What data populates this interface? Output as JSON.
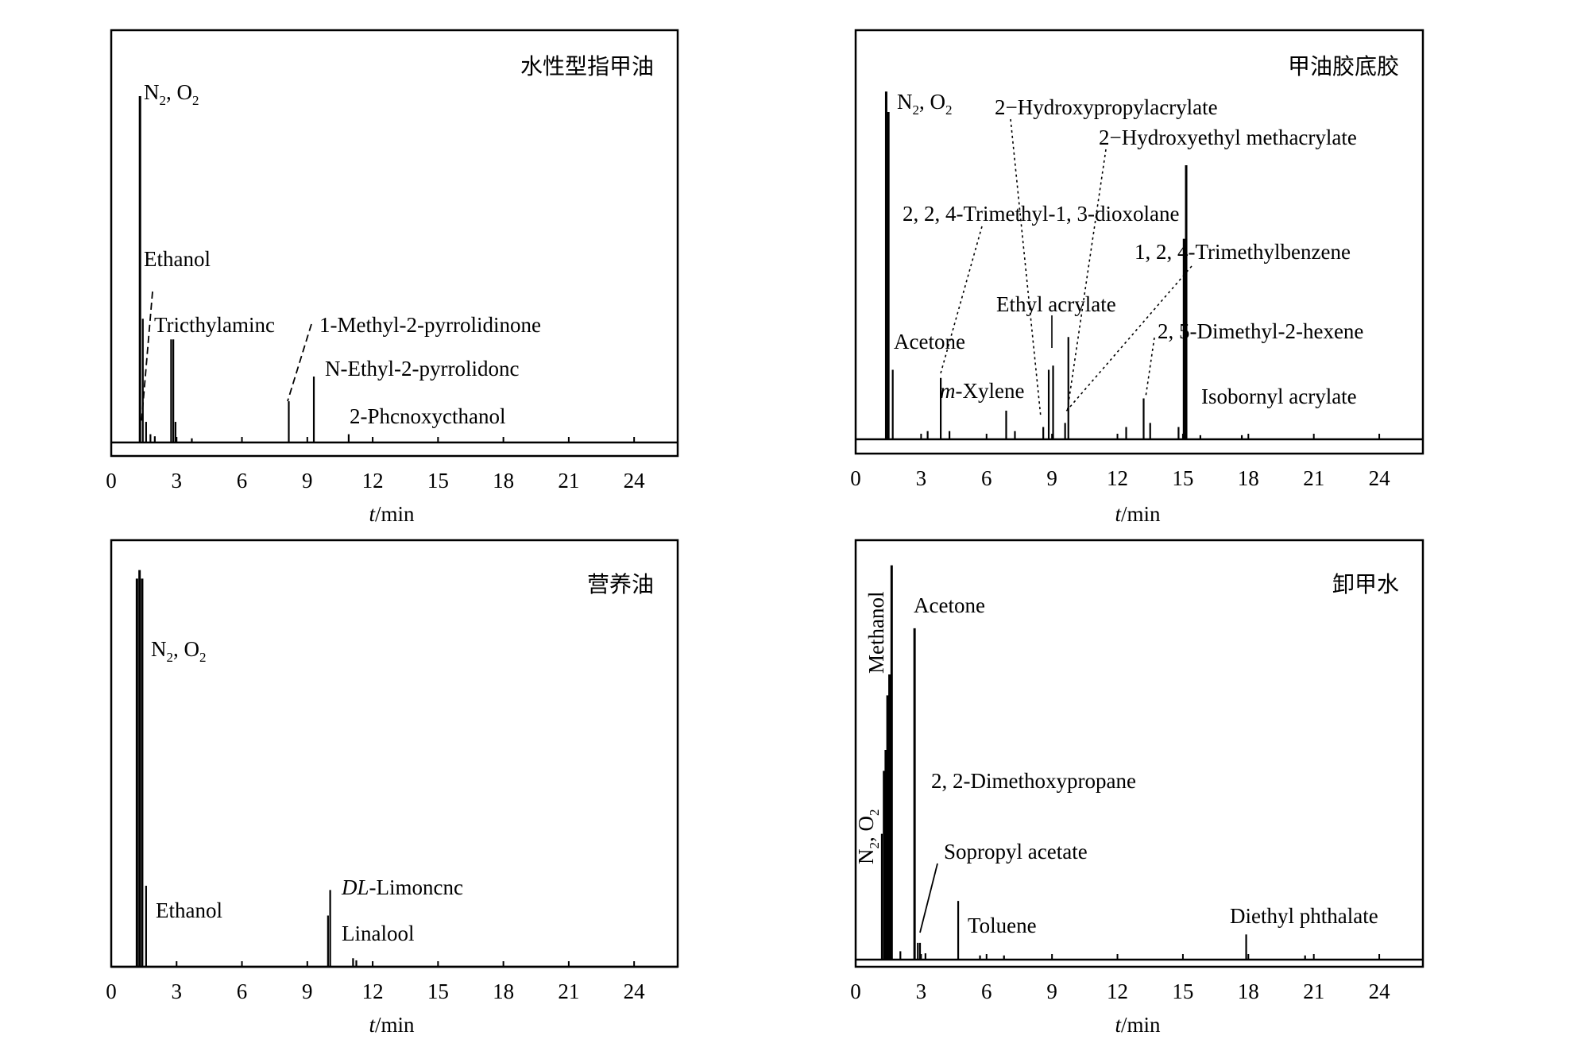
{
  "chart_data": [
    {
      "type": "line",
      "title": "水性型指甲油",
      "xlabel_italic": "t",
      "xlabel_rest": "/min",
      "xlim": [
        0,
        26
      ],
      "xticks": [
        "0",
        "3",
        "6",
        "9",
        "12",
        "15",
        "18",
        "21",
        "24"
      ],
      "peaks": [
        {
          "x": 1.32,
          "h": 0.84
        },
        {
          "x": 1.45,
          "h": 0.3
        },
        {
          "x": 1.6,
          "h": 0.05
        },
        {
          "x": 1.8,
          "h": 0.02
        },
        {
          "x": 2.0,
          "h": 0.015
        },
        {
          "x": 2.75,
          "h": 0.25
        },
        {
          "x": 2.85,
          "h": 0.25
        },
        {
          "x": 2.95,
          "h": 0.05
        },
        {
          "x": 3.7,
          "h": 0.01
        },
        {
          "x": 8.15,
          "h": 0.1
        },
        {
          "x": 9.3,
          "h": 0.16
        },
        {
          "x": 10.9,
          "h": 0.02
        }
      ],
      "labels": [
        {
          "text": "N",
          "sub": "2",
          "text2": ", O",
          "sub2": "2"
        },
        {
          "text": "Ethanol"
        },
        {
          "text": "Tricthylaminc"
        },
        {
          "text": "1-Methyl-2-pyrrolidinone"
        },
        {
          "text": "N-Ethyl-2-pyrrolidonc"
        },
        {
          "text": "2-Phcnoxycthanol"
        }
      ]
    },
    {
      "type": "line",
      "title": "甲油胶底胶",
      "xlabel_italic": "t",
      "xlabel_rest": "/min",
      "xlim": [
        0,
        26
      ],
      "xticks": [
        "0",
        "3",
        "6",
        "9",
        "12",
        "15",
        "18",
        "21",
        "24"
      ],
      "peaks": [
        {
          "x": 1.4,
          "h": 0.85
        },
        {
          "x": 1.5,
          "h": 0.8
        },
        {
          "x": 1.7,
          "h": 0.17
        },
        {
          "x": 3.3,
          "h": 0.02
        },
        {
          "x": 3.9,
          "h": 0.15
        },
        {
          "x": 4.3,
          "h": 0.02
        },
        {
          "x": 6.9,
          "h": 0.07
        },
        {
          "x": 7.3,
          "h": 0.02
        },
        {
          "x": 8.6,
          "h": 0.03
        },
        {
          "x": 8.85,
          "h": 0.17
        },
        {
          "x": 9.05,
          "h": 0.18
        },
        {
          "x": 9.6,
          "h": 0.04
        },
        {
          "x": 9.75,
          "h": 0.25
        },
        {
          "x": 12.4,
          "h": 0.03
        },
        {
          "x": 13.2,
          "h": 0.1
        },
        {
          "x": 13.5,
          "h": 0.04
        },
        {
          "x": 14.8,
          "h": 0.03
        },
        {
          "x": 15.05,
          "h": 0.49
        },
        {
          "x": 15.15,
          "h": 0.67
        },
        {
          "x": 15.8,
          "h": 0.01
        },
        {
          "x": 17.7,
          "h": 0.01
        }
      ],
      "labels": [
        {
          "text": "N",
          "sub": "2",
          "text2": ", O",
          "sub2": "2"
        },
        {
          "text": "2−Hydroxypropylacrylate"
        },
        {
          "text": "2−Hydroxyethyl methacrylate"
        },
        {
          "text": "2, 2, 4-Trimethyl-1, 3-dioxolane"
        },
        {
          "text": "1, 2, 4-Trimethylbenzene"
        },
        {
          "text": "Ethyl acrylate"
        },
        {
          "text": "Acetone"
        },
        {
          "text": "2, 5-Dimethyl-2-hexene"
        },
        {
          "text": "m",
          "text2": "-Xylene"
        },
        {
          "text": "Isobornyl acrylate"
        }
      ]
    },
    {
      "type": "line",
      "title": "营养油",
      "xlabel_italic": "t",
      "xlabel_rest": "/min",
      "xlim": [
        0,
        26
      ],
      "xticks": [
        "0",
        "3",
        "6",
        "9",
        "12",
        "15",
        "18",
        "21",
        "24"
      ],
      "peaks": [
        {
          "x": 1.18,
          "h": 0.91
        },
        {
          "x": 1.3,
          "h": 0.93
        },
        {
          "x": 1.42,
          "h": 0.91
        },
        {
          "x": 1.6,
          "h": 0.19
        },
        {
          "x": 9.95,
          "h": 0.12
        },
        {
          "x": 10.05,
          "h": 0.18
        },
        {
          "x": 11.1,
          "h": 0.02
        },
        {
          "x": 11.25,
          "h": 0.015
        }
      ],
      "labels": [
        {
          "text": "N",
          "sub": "2",
          "text2": ", O",
          "sub2": "2"
        },
        {
          "text": "Ethanol"
        },
        {
          "text": "DL",
          "text2": "-Limoncnc"
        },
        {
          "text": "Linalool"
        }
      ]
    },
    {
      "type": "line",
      "title": "卸甲水",
      "xlabel_italic": "t",
      "xlabel_rest": "/min",
      "xlim": [
        0,
        26
      ],
      "xticks": [
        "0",
        "3",
        "6",
        "9",
        "12",
        "15",
        "18",
        "21",
        "24"
      ],
      "peaks": [
        {
          "x": 1.2,
          "h": 0.3
        },
        {
          "x": 1.3,
          "h": 0.45
        },
        {
          "x": 1.38,
          "h": 0.5
        },
        {
          "x": 1.46,
          "h": 0.63
        },
        {
          "x": 1.55,
          "h": 0.68
        },
        {
          "x": 1.65,
          "h": 0.94
        },
        {
          "x": 2.05,
          "h": 0.02
        },
        {
          "x": 2.7,
          "h": 0.79
        },
        {
          "x": 2.85,
          "h": 0.04
        },
        {
          "x": 2.95,
          "h": 0.04
        },
        {
          "x": 3.2,
          "h": 0.015
        },
        {
          "x": 4.7,
          "h": 0.14
        },
        {
          "x": 5.7,
          "h": 0.01
        },
        {
          "x": 6.8,
          "h": 0.01
        },
        {
          "x": 17.9,
          "h": 0.06
        },
        {
          "x": 20.6,
          "h": 0.01
        }
      ],
      "labels": [
        {
          "text": "Methanol"
        },
        {
          "text": "Acetone"
        },
        {
          "text": "N",
          "sub": "2",
          "text2": ", O",
          "sub2": "2"
        },
        {
          "text": "2, 2-Dimethoxypropane"
        },
        {
          "text": "Sopropyl acetate"
        },
        {
          "text": "Toluene"
        },
        {
          "text": "Diethyl phthalate"
        }
      ]
    }
  ]
}
